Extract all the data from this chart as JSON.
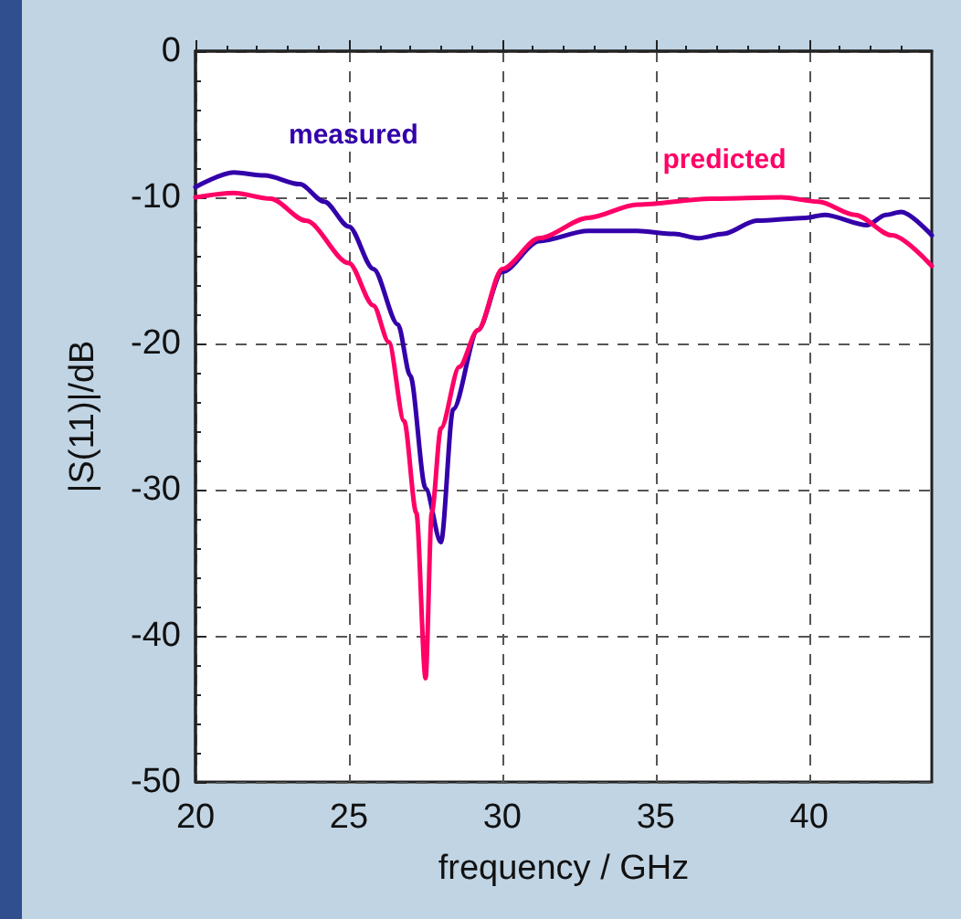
{
  "chart_data": {
    "type": "line",
    "xlabel": "frequency / GHz",
    "ylabel": "|S(11)|/dB",
    "xlim": [
      20,
      44
    ],
    "ylim": [
      -50,
      0
    ],
    "xticks": [
      20,
      25,
      30,
      35,
      40
    ],
    "yticks": [
      -50,
      -40,
      -30,
      -20,
      -10,
      0
    ],
    "grid": true,
    "legend": false,
    "marker": "none",
    "line_style": "solid",
    "series": [
      {
        "name": "measured",
        "color": "#3300aa",
        "x": [
          20,
          21.25,
          22.25,
          23.4,
          24.2,
          25,
          25.8,
          26.6,
          27,
          27.5,
          28,
          28.4,
          29.2,
          30,
          31.2,
          32.8,
          34.4,
          35.6,
          36.4,
          37.2,
          38.3,
          39.9,
          40.5,
          41.9,
          42.5,
          43,
          44
        ],
        "values": [
          -9.3,
          -8.3,
          -8.5,
          -9.1,
          -10.3,
          -12,
          -14.9,
          -18.7,
          -22.2,
          -29.9,
          -33.6,
          -24.5,
          -19.1,
          -15.1,
          -13,
          -12.3,
          -12.3,
          -12.5,
          -12.8,
          -12.5,
          -11.6,
          -11.4,
          -11.2,
          -11.9,
          -11.2,
          -11,
          -12.6
        ]
      },
      {
        "name": "predicted",
        "color": "#ff0066",
        "x": [
          20,
          21.25,
          22.45,
          23.6,
          25,
          25.8,
          26.3,
          26.8,
          27.2,
          27.5,
          27.7,
          28,
          28.6,
          29.2,
          30,
          31.2,
          32.8,
          34.4,
          36.8,
          39.1,
          40.3,
          41.5,
          42.7,
          44
        ],
        "values": [
          -10,
          -9.7,
          -10.1,
          -11.6,
          -14.5,
          -17.4,
          -19.9,
          -25.3,
          -31.6,
          -42.9,
          -31.6,
          -25.8,
          -21.6,
          -19.1,
          -14.9,
          -12.8,
          -11.4,
          -10.5,
          -10.1,
          -10,
          -10.3,
          -11.2,
          -12.6,
          -14.7
        ]
      }
    ]
  }
}
